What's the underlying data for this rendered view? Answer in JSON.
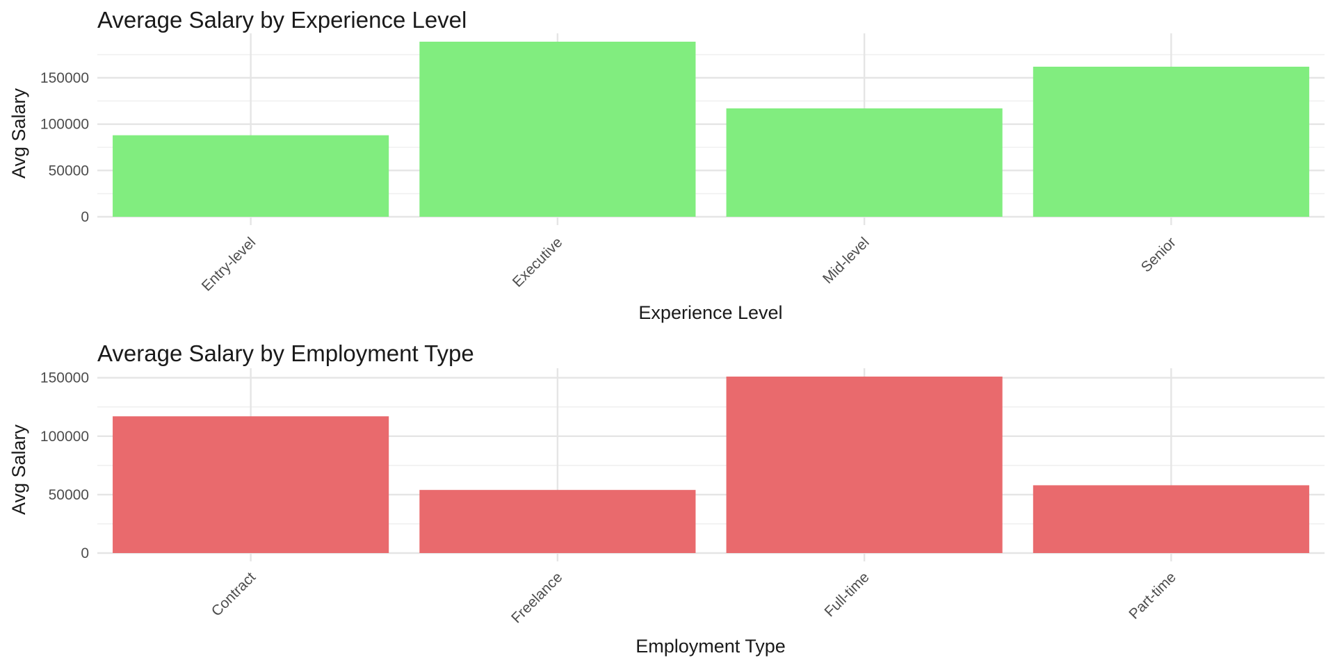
{
  "chart_data": [
    {
      "type": "bar",
      "title": "Average Salary by Experience Level",
      "xlabel": "Experience Level",
      "ylabel": "Avg Salary",
      "categories": [
        "Entry-level",
        "Executive",
        "Mid-level",
        "Senior"
      ],
      "values": [
        88000,
        189000,
        117000,
        162000
      ],
      "ylim": [
        0,
        189000
      ],
      "yticks": [
        0,
        50000,
        100000,
        150000
      ],
      "yticklabels": [
        "0",
        "50000",
        "100000",
        "150000"
      ],
      "grid": true,
      "bar_color": "#81ED7F"
    },
    {
      "type": "bar",
      "title": "Average Salary by Employment Type",
      "xlabel": "Employment Type",
      "ylabel": "Avg Salary",
      "categories": [
        "Contract",
        "Freelance",
        "Full-time",
        "Part-time"
      ],
      "values": [
        117000,
        54000,
        151000,
        58000
      ],
      "ylim": [
        0,
        151000
      ],
      "yticks": [
        0,
        50000,
        100000,
        150000
      ],
      "yticklabels": [
        "0",
        "50000",
        "100000",
        "150000"
      ],
      "grid": true,
      "bar_color": "#E96A6D"
    }
  ]
}
